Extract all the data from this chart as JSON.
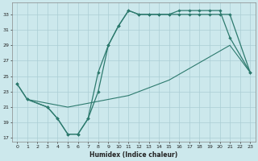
{
  "title": "",
  "xlabel": "Humidex (Indice chaleur)",
  "bg_color": "#cce8ec",
  "grid_color": "#aacdd4",
  "line_color": "#2d7a6e",
  "xlim": [
    -0.5,
    23.5
  ],
  "ylim": [
    16.5,
    34.5
  ],
  "xticks": [
    0,
    1,
    2,
    3,
    4,
    5,
    6,
    7,
    8,
    9,
    10,
    11,
    12,
    13,
    14,
    15,
    16,
    17,
    18,
    19,
    20,
    21,
    22,
    23
  ],
  "yticks": [
    17,
    19,
    21,
    23,
    25,
    27,
    29,
    31,
    33
  ],
  "line1_x": [
    0,
    1,
    3,
    4,
    5,
    6,
    7,
    8,
    9,
    10,
    11,
    12,
    13,
    14,
    15,
    16,
    17,
    18,
    19,
    20,
    21,
    23
  ],
  "line1_y": [
    24,
    22,
    21,
    19.5,
    17.5,
    17.5,
    19.5,
    23,
    29,
    31.5,
    33.5,
    33,
    33,
    33,
    33,
    33.5,
    33.5,
    33.5,
    33.5,
    33.5,
    30,
    25.5
  ],
  "line2_x": [
    0,
    1,
    3,
    4,
    5,
    6,
    7,
    8,
    9,
    10,
    11,
    12,
    13,
    14,
    15,
    16,
    17,
    18,
    19,
    20,
    21,
    23
  ],
  "line2_y": [
    24,
    22,
    21,
    19.5,
    17.5,
    17.5,
    19.5,
    25.5,
    29,
    31.5,
    33.5,
    33,
    33,
    33,
    33,
    33,
    33,
    33,
    33,
    33,
    33,
    25.5
  ],
  "line3_x": [
    1,
    3,
    5,
    7,
    9,
    11,
    13,
    15,
    17,
    19,
    21,
    23
  ],
  "line3_y": [
    22,
    21.5,
    21,
    21.5,
    22,
    22.5,
    23.5,
    24.5,
    26,
    27.5,
    29,
    25.5
  ]
}
